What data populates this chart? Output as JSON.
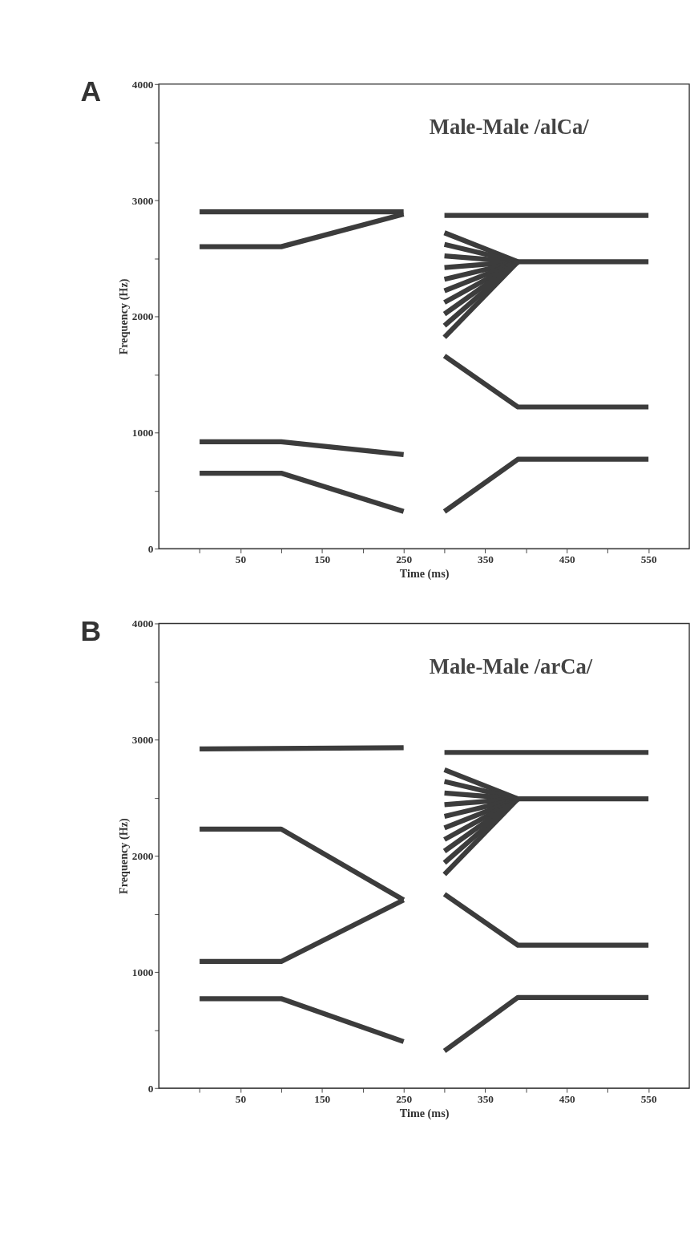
{
  "chart_data": [
    {
      "type": "line",
      "title": "Male-Male /alCa/",
      "annotations": [
        "A"
      ],
      "xlabel": "Time  (ms)",
      "ylabel": "Frequency  (Hz)",
      "xlim": [
        -50,
        600
      ],
      "ylim": [
        0,
        4000
      ],
      "xticks": [
        {
          "value": 0,
          "label": null
        },
        50,
        {
          "value": 100,
          "label": null
        },
        150,
        {
          "value": 200,
          "label": null
        },
        250,
        {
          "value": 300,
          "label": null
        },
        350,
        {
          "value": 400,
          "label": null
        },
        450,
        {
          "value": 500,
          "label": null
        },
        550
      ],
      "yticks": [
        0,
        {
          "value": 500,
          "label": null
        },
        1000,
        {
          "value": 1500,
          "label": null
        },
        2000,
        {
          "value": 2500,
          "label": null
        },
        3000,
        {
          "value": 3500,
          "label": null
        },
        4000
      ],
      "grid": false,
      "series": [
        {
          "color": "#3c3c3c",
          "x": [
            0,
            250
          ],
          "values": [
            2900,
            2900
          ]
        },
        {
          "color": "#3c3c3c",
          "x": [
            0,
            100,
            250
          ],
          "values": [
            2600,
            2600,
            2880
          ]
        },
        {
          "color": "#3c3c3c",
          "x": [
            0,
            100,
            250
          ],
          "values": [
            920,
            920,
            810
          ]
        },
        {
          "color": "#3c3c3c",
          "x": [
            0,
            100,
            250
          ],
          "values": [
            650,
            650,
            320
          ]
        },
        {
          "color": "#3c3c3c",
          "x": [
            300,
            550
          ],
          "values": [
            2870,
            2870
          ]
        },
        {
          "color": "#3c3c3c",
          "x": [
            300,
            390,
            550
          ],
          "values": [
            2720,
            2470,
            2470
          ]
        },
        {
          "color": "#3c3c3c",
          "x": [
            300,
            390
          ],
          "values": [
            2620,
            2470
          ]
        },
        {
          "color": "#3c3c3c",
          "x": [
            300,
            390
          ],
          "values": [
            2520,
            2470
          ]
        },
        {
          "color": "#3c3c3c",
          "x": [
            300,
            390
          ],
          "values": [
            2420,
            2470
          ]
        },
        {
          "color": "#3c3c3c",
          "x": [
            300,
            390
          ],
          "values": [
            2320,
            2470
          ]
        },
        {
          "color": "#3c3c3c",
          "x": [
            300,
            390
          ],
          "values": [
            2220,
            2470
          ]
        },
        {
          "color": "#3c3c3c",
          "x": [
            300,
            390
          ],
          "values": [
            2120,
            2470
          ]
        },
        {
          "color": "#3c3c3c",
          "x": [
            300,
            390
          ],
          "values": [
            2020,
            2470
          ]
        },
        {
          "color": "#3c3c3c",
          "x": [
            300,
            390
          ],
          "values": [
            1920,
            2470
          ]
        },
        {
          "color": "#3c3c3c",
          "x": [
            300,
            390
          ],
          "values": [
            1820,
            2470
          ]
        },
        {
          "color": "#3c3c3c",
          "x": [
            300,
            390,
            550
          ],
          "values": [
            1660,
            1220,
            1220
          ]
        },
        {
          "color": "#3c3c3c",
          "x": [
            300,
            390,
            550
          ],
          "values": [
            320,
            770,
            770
          ]
        }
      ]
    },
    {
      "type": "line",
      "title": "Male-Male /arCa/",
      "annotations": [
        "B"
      ],
      "xlabel": "Time  (ms)",
      "ylabel": "Frequency  (Hz)",
      "xlim": [
        -50,
        600
      ],
      "ylim": [
        0,
        4000
      ],
      "xticks": [
        {
          "value": 0,
          "label": null
        },
        50,
        {
          "value": 100,
          "label": null
        },
        150,
        {
          "value": 200,
          "label": null
        },
        250,
        {
          "value": 300,
          "label": null
        },
        350,
        {
          "value": 400,
          "label": null
        },
        450,
        {
          "value": 500,
          "label": null
        },
        550
      ],
      "yticks": [
        0,
        {
          "value": 500,
          "label": null
        },
        1000,
        {
          "value": 1500,
          "label": null
        },
        2000,
        {
          "value": 2500,
          "label": null
        },
        3000,
        {
          "value": 3500,
          "label": null
        },
        4000
      ],
      "grid": false,
      "series": [
        {
          "color": "#3c3c3c",
          "x": [
            0,
            250
          ],
          "values": [
            2920,
            2930
          ]
        },
        {
          "color": "#3c3c3c",
          "x": [
            0,
            100,
            250
          ],
          "values": [
            2230,
            2230,
            1620
          ]
        },
        {
          "color": "#3c3c3c",
          "x": [
            0,
            100,
            250
          ],
          "values": [
            1090,
            1090,
            1620
          ]
        },
        {
          "color": "#3c3c3c",
          "x": [
            0,
            100,
            250
          ],
          "values": [
            770,
            770,
            400
          ]
        },
        {
          "color": "#3c3c3c",
          "x": [
            300,
            550
          ],
          "values": [
            2890,
            2890
          ]
        },
        {
          "color": "#3c3c3c",
          "x": [
            300,
            390,
            550
          ],
          "values": [
            2740,
            2490,
            2490
          ]
        },
        {
          "color": "#3c3c3c",
          "x": [
            300,
            390
          ],
          "values": [
            2640,
            2490
          ]
        },
        {
          "color": "#3c3c3c",
          "x": [
            300,
            390
          ],
          "values": [
            2540,
            2490
          ]
        },
        {
          "color": "#3c3c3c",
          "x": [
            300,
            390
          ],
          "values": [
            2440,
            2490
          ]
        },
        {
          "color": "#3c3c3c",
          "x": [
            300,
            390
          ],
          "values": [
            2340,
            2490
          ]
        },
        {
          "color": "#3c3c3c",
          "x": [
            300,
            390
          ],
          "values": [
            2240,
            2490
          ]
        },
        {
          "color": "#3c3c3c",
          "x": [
            300,
            390
          ],
          "values": [
            2140,
            2490
          ]
        },
        {
          "color": "#3c3c3c",
          "x": [
            300,
            390
          ],
          "values": [
            2040,
            2490
          ]
        },
        {
          "color": "#3c3c3c",
          "x": [
            300,
            390
          ],
          "values": [
            1940,
            2490
          ]
        },
        {
          "color": "#3c3c3c",
          "x": [
            300,
            390
          ],
          "values": [
            1840,
            2490
          ]
        },
        {
          "color": "#3c3c3c",
          "x": [
            300,
            390,
            550
          ],
          "values": [
            1670,
            1230,
            1230
          ]
        },
        {
          "color": "#3c3c3c",
          "x": [
            300,
            390,
            550
          ],
          "values": [
            320,
            780,
            780
          ]
        }
      ]
    }
  ]
}
